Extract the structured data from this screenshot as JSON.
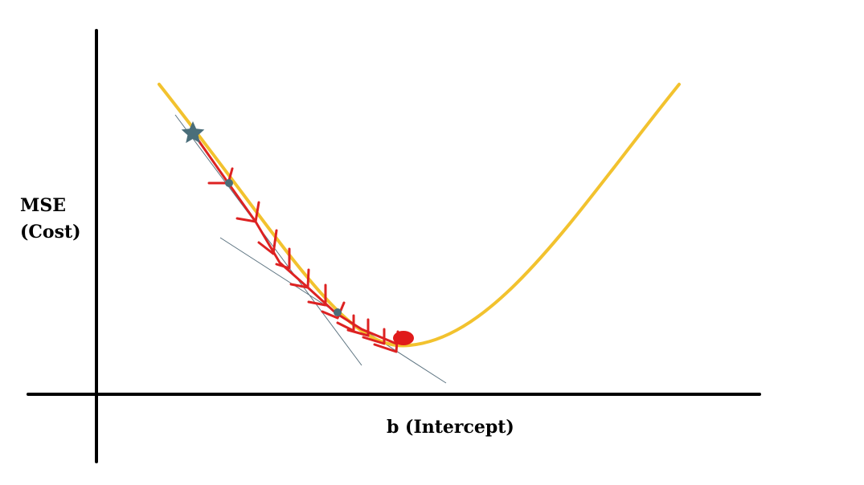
{
  "y_axis_label": {
    "line1": "MSE",
    "line2": "(Cost)"
  },
  "x_axis_label": "b (Intercept)",
  "colors": {
    "axes": "#000000",
    "curve": "#F2C22E",
    "path": "#DD2222",
    "markers": "#4A6E7A",
    "tangent": "#5C7380",
    "minimum": "#E01B1B"
  },
  "icons": {
    "start": "star-icon",
    "step_marker": "dot-icon",
    "minimum": "ellipse-icon",
    "step_arrow": "chevron-arrow-icon"
  }
}
